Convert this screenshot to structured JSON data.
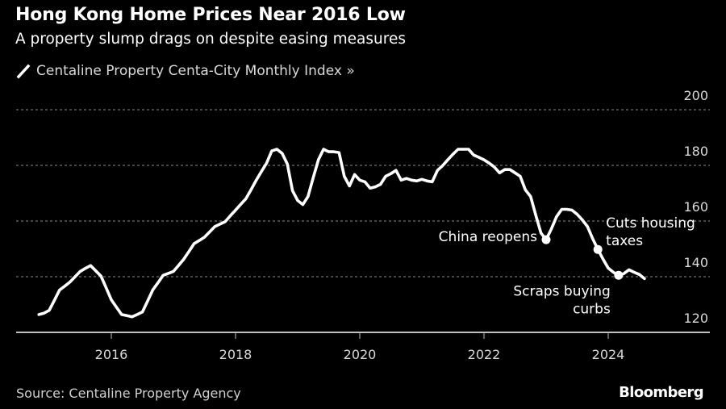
{
  "header": {
    "title": "Hong Kong Home Prices Near 2016 Low",
    "subtitle": "A property slump drags on despite easing measures",
    "legend_label": "Centaline Property Centa-City Monthly Index »"
  },
  "footer": {
    "source": "Source: Centaline Property Agency",
    "brand": "Bloomberg"
  },
  "colors": {
    "background": "#000000",
    "line": "#ffffff",
    "grid": "#8c8c8c",
    "axis": "#bfbfbf",
    "text_muted": "#d9d9d9"
  },
  "chart_data": {
    "type": "line",
    "title": "Hong Kong Home Prices Near 2016 Low",
    "subtitle": "A property slump drags on despite easing measures",
    "xlabel": "",
    "ylabel": "",
    "legend": [
      "Centaline Property Centa-City Monthly Index"
    ],
    "legend_position": "top-left",
    "y_axis_side": "right",
    "ylim": [
      120,
      200
    ],
    "yticks": [
      120,
      140,
      160,
      180,
      200
    ],
    "xlim": [
      2014.7,
      2025.3
    ],
    "xticks": [
      2016,
      2018,
      2020,
      2022,
      2024
    ],
    "xtick_labels": [
      "2016",
      "2018",
      "2020",
      "2022",
      "2024"
    ],
    "grid": "horizontal dotted",
    "series": [
      {
        "name": "Centaline Property Centa-City Monthly Index",
        "start": "2014-11",
        "frequency": "monthly",
        "values": [
          126.4,
          126.9,
          127.9,
          131.5,
          135.2,
          136.6,
          138.1,
          140.0,
          141.9,
          143.0,
          144.0,
          142.1,
          140.2,
          136.0,
          131.7,
          129.0,
          126.4,
          126.0,
          125.6,
          126.4,
          127.3,
          131.2,
          135.2,
          137.8,
          140.5,
          141.2,
          141.9,
          144.1,
          146.3,
          149.1,
          151.9,
          153.0,
          154.2,
          156.1,
          158.0,
          158.9,
          159.8,
          161.9,
          163.9,
          166.0,
          168.0,
          171.3,
          174.7,
          177.8,
          180.8,
          185.2,
          185.8,
          184.3,
          180.5,
          170.9,
          167.4,
          165.9,
          168.8,
          175.6,
          182.0,
          185.8,
          184.9,
          184.9,
          184.6,
          176.1,
          172.6,
          176.7,
          174.7,
          174.1,
          171.8,
          172.3,
          173.2,
          176.1,
          177.0,
          178.2,
          174.7,
          175.3,
          174.7,
          174.4,
          175.0,
          174.4,
          174.1,
          178.2,
          179.9,
          182.0,
          184.0,
          185.8,
          185.8,
          185.8,
          183.7,
          182.9,
          182.0,
          180.8,
          179.4,
          177.3,
          178.5,
          178.5,
          177.3,
          176.1,
          171.2,
          168.8,
          162.1,
          155.7,
          153.3,
          157.1,
          161.5,
          164.2,
          164.2,
          163.9,
          162.4,
          160.4,
          158.0,
          153.6,
          149.8,
          146.3,
          143.1,
          141.6,
          140.5,
          141.1,
          142.5,
          141.6,
          140.8,
          139.3
        ]
      }
    ],
    "annotations": [
      {
        "date": "2023-01",
        "value": 153.3,
        "lines": [
          "China reopens"
        ],
        "placement": "left"
      },
      {
        "date": "2023-11",
        "value": 149.8,
        "lines": [
          "Cuts housing",
          "taxes"
        ],
        "placement": "right"
      },
      {
        "date": "2024-03",
        "value": 140.5,
        "lines": [
          "Scraps buying",
          "curbs"
        ],
        "placement": "below"
      }
    ]
  }
}
